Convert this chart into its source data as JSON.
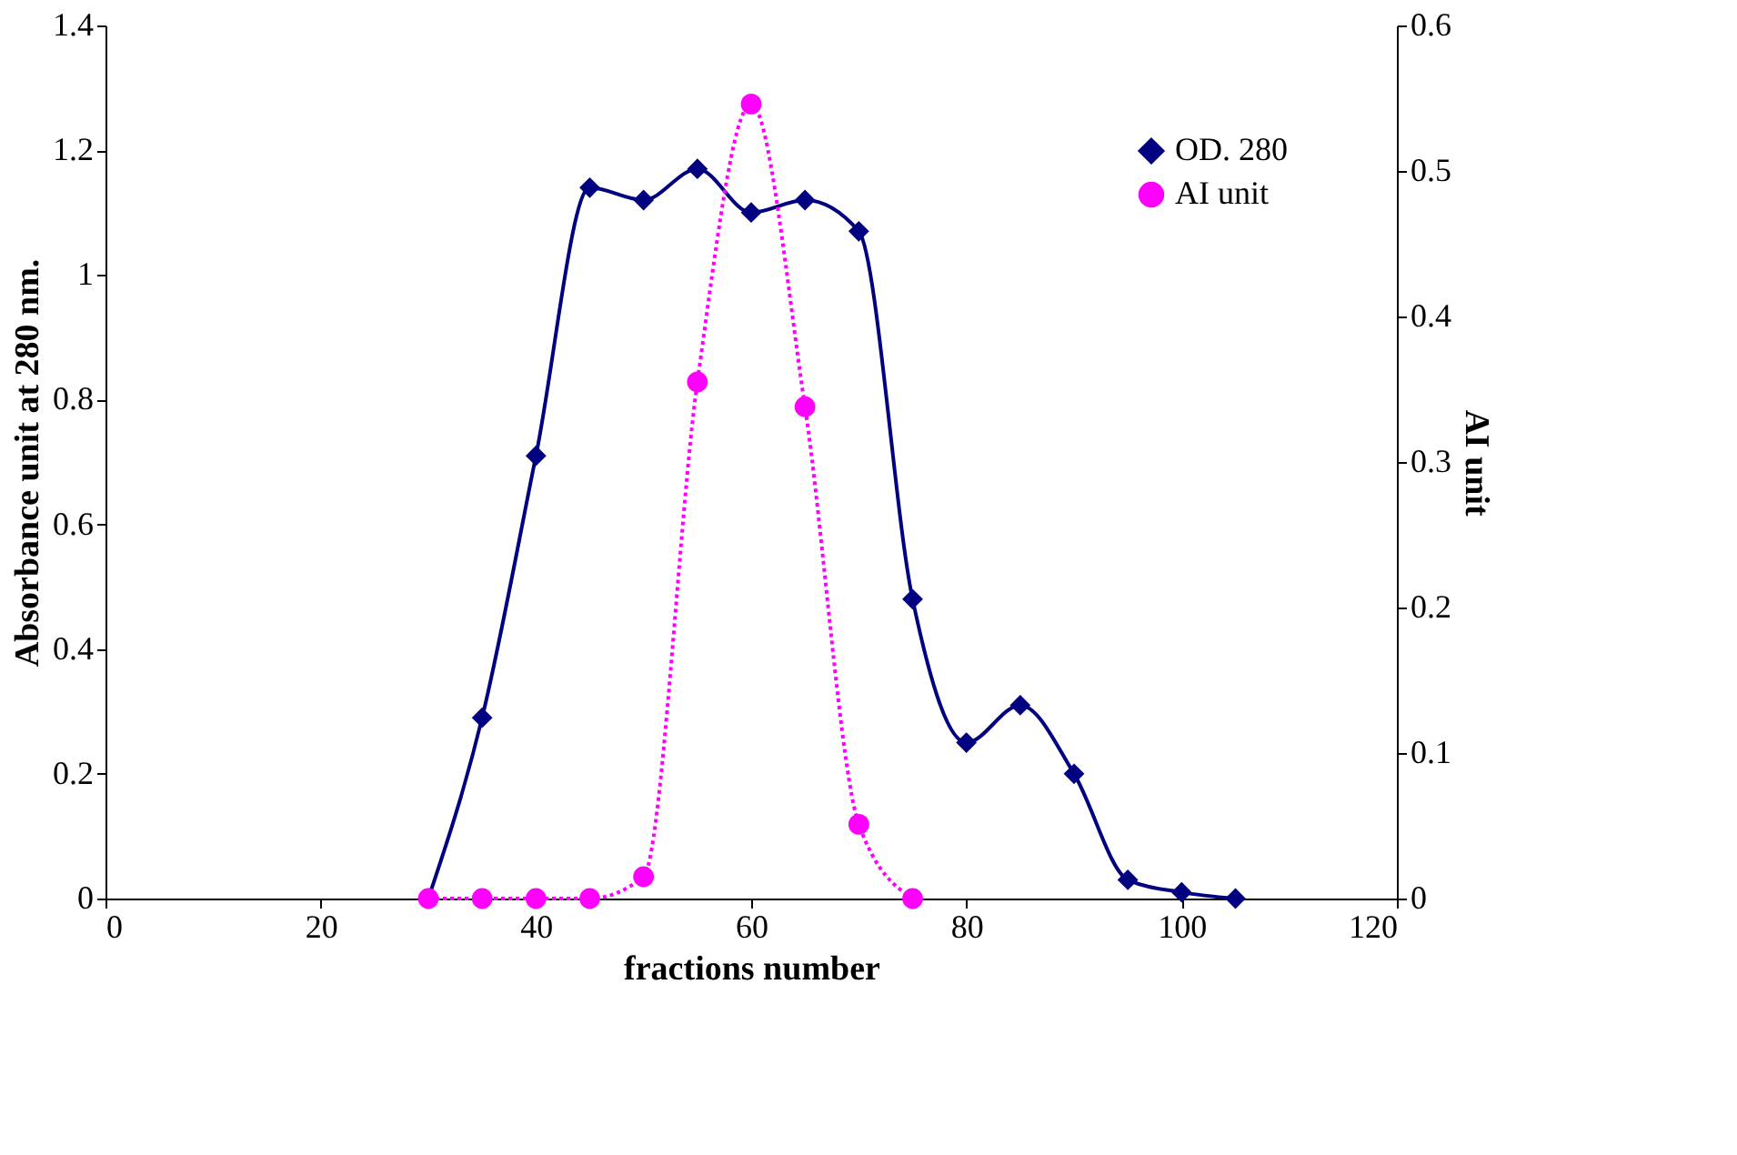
{
  "chart_data": {
    "type": "line",
    "xlabel": "fractions number",
    "ylabel": "Absorbance unit at 280 nm.",
    "y2label": "AI unit",
    "xlim": [
      0,
      120
    ],
    "xticks": [
      0,
      20,
      40,
      60,
      80,
      100,
      120
    ],
    "ylim": [
      0,
      1.4
    ],
    "yticks": [
      0,
      0.2,
      0.4,
      0.6,
      0.8,
      1,
      1.2,
      1.4
    ],
    "y2lim": [
      0,
      0.6
    ],
    "y2ticks": [
      0,
      0.1,
      0.2,
      0.3,
      0.4,
      0.5,
      0.6
    ],
    "grid": false,
    "legend": "top right",
    "series": [
      {
        "name": "OD. 280",
        "color": "#000080",
        "marker": "diamond",
        "line_style": "solid",
        "x": [
          30,
          35,
          40,
          45,
          50,
          55,
          60,
          65,
          70,
          75,
          80,
          85,
          90,
          95,
          100,
          105
        ],
        "values": [
          0,
          0.29,
          0.71,
          1.14,
          1.12,
          1.17,
          1.1,
          1.12,
          1.07,
          0.48,
          0.25,
          0.31,
          0.2,
          0.03,
          0.01,
          0
        ]
      },
      {
        "name": "AI unit",
        "color": "#ff00ff",
        "marker": "circle",
        "line_style": "dotted",
        "axis": "y2",
        "x": [
          30,
          35,
          40,
          45,
          50,
          55,
          60,
          65,
          70,
          75
        ],
        "values": [
          0,
          0,
          0,
          0,
          0.015,
          0.355,
          0.546,
          0.338,
          0.051,
          0
        ]
      }
    ]
  }
}
